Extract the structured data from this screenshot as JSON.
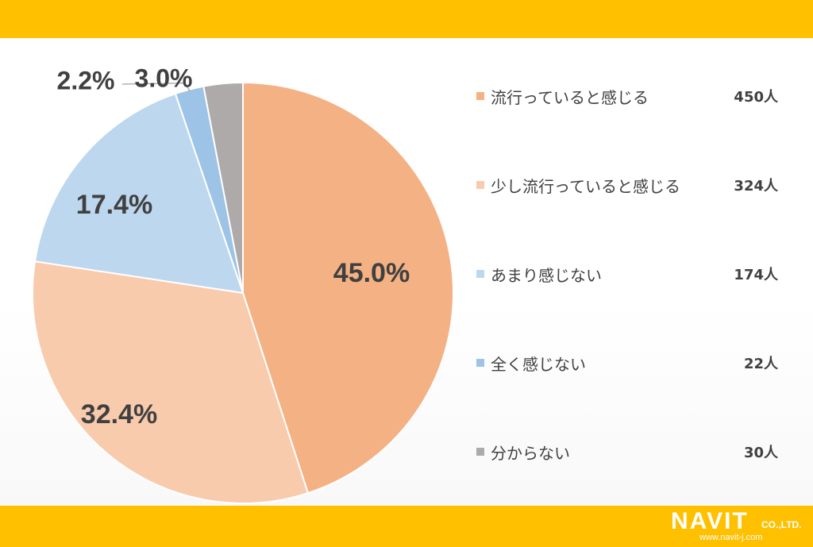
{
  "chart_data": {
    "type": "pie",
    "title": "",
    "slices": [
      {
        "label": "流行っていると感じる",
        "count": "450人",
        "value": 450,
        "percent": 45.0,
        "percent_label": "45.0%",
        "color": "#f4b183"
      },
      {
        "label": "少し流行っていると感じる",
        "count": "324人",
        "value": 324,
        "percent": 32.4,
        "percent_label": "32.4%",
        "color": "#f8cbad"
      },
      {
        "label": "あまり感じない",
        "count": "174人",
        "value": 174,
        "percent": 17.4,
        "percent_label": "17.4%",
        "color": "#bdd7ee"
      },
      {
        "label": "全く感じない",
        "count": "22人",
        "value": 22,
        "percent": 2.2,
        "percent_label": "2.2%",
        "color": "#9dc3e6"
      },
      {
        "label": "分からない",
        "count": "30人",
        "value": 30,
        "percent": 3.0,
        "percent_label": "3.0%",
        "color": "#aeaaaa"
      }
    ],
    "legend_position": "right",
    "start_angle": "12 o'clock",
    "direction": "clockwise"
  },
  "logo": {
    "brand": "NAVIT",
    "suffix": "CO.,LTD.",
    "url": "www.navit-j.com"
  },
  "colors": {
    "band": "#ffc000",
    "text": "#404040"
  }
}
